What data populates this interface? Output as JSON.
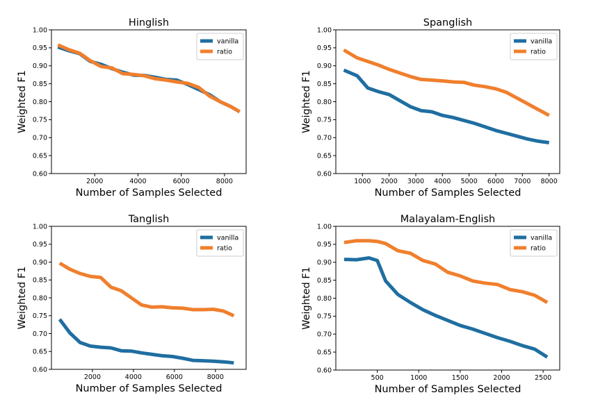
{
  "colors": {
    "vanilla": "#1f6ea1",
    "ratio": "#f07f2d"
  },
  "chart_data": [
    {
      "type": "line",
      "title": "Hinglish",
      "xlabel": "Number of Samples Selected",
      "ylabel": "Weighted F1",
      "xlim": [
        0,
        9000
      ],
      "ylim": [
        0.6,
        1.0
      ],
      "xticks": [
        2000,
        4000,
        6000,
        8000
      ],
      "yticks": [
        0.6,
        0.65,
        0.7,
        0.75,
        0.8,
        0.85,
        0.9,
        0.95,
        1.0
      ],
      "legend": "top-right",
      "series": [
        {
          "name": "vanilla",
          "x": [
            300,
            800,
            1300,
            1800,
            2300,
            2800,
            3300,
            3800,
            4300,
            4800,
            5300,
            5800,
            6300,
            6800,
            7300,
            7800,
            8300,
            8700
          ],
          "y": [
            0.952,
            0.942,
            0.934,
            0.912,
            0.904,
            0.892,
            0.882,
            0.874,
            0.873,
            0.868,
            0.862,
            0.86,
            0.848,
            0.834,
            0.82,
            0.8,
            0.786,
            0.772
          ]
        },
        {
          "name": "ratio",
          "x": [
            300,
            800,
            1300,
            1800,
            2300,
            2800,
            3300,
            3800,
            4300,
            4800,
            5300,
            5800,
            6300,
            6800,
            7300,
            7800,
            8300,
            8700
          ],
          "y": [
            0.958,
            0.945,
            0.935,
            0.914,
            0.898,
            0.894,
            0.878,
            0.876,
            0.872,
            0.864,
            0.86,
            0.855,
            0.851,
            0.84,
            0.816,
            0.8,
            0.786,
            0.772
          ]
        }
      ]
    },
    {
      "type": "line",
      "title": "Spanglish",
      "xlabel": "Number of Samples Selected",
      "ylabel": "Weighted F1",
      "xlim": [
        0,
        8400
      ],
      "ylim": [
        0.6,
        1.0
      ],
      "xticks": [
        1000,
        2000,
        3000,
        4000,
        5000,
        6000,
        7000,
        8000
      ],
      "yticks": [
        0.6,
        0.65,
        0.7,
        0.75,
        0.8,
        0.85,
        0.9,
        0.95,
        1.0
      ],
      "legend": "top-right",
      "series": [
        {
          "name": "vanilla",
          "x": [
            300,
            800,
            1200,
            1600,
            2000,
            2400,
            2800,
            3200,
            3600,
            4000,
            4400,
            4800,
            5200,
            5600,
            6000,
            6400,
            6800,
            7200,
            7600,
            8000
          ],
          "y": [
            0.888,
            0.872,
            0.838,
            0.828,
            0.82,
            0.803,
            0.786,
            0.775,
            0.772,
            0.762,
            0.756,
            0.748,
            0.74,
            0.73,
            0.72,
            0.712,
            0.704,
            0.696,
            0.69,
            0.686
          ]
        },
        {
          "name": "ratio",
          "x": [
            300,
            800,
            1200,
            1600,
            2000,
            2400,
            2800,
            3200,
            3600,
            4000,
            4400,
            4800,
            5200,
            5600,
            6000,
            6400,
            6800,
            7200,
            7600,
            8000
          ],
          "y": [
            0.944,
            0.922,
            0.912,
            0.902,
            0.89,
            0.88,
            0.87,
            0.862,
            0.86,
            0.858,
            0.855,
            0.854,
            0.846,
            0.842,
            0.836,
            0.826,
            0.81,
            0.794,
            0.778,
            0.762
          ]
        }
      ]
    },
    {
      "type": "line",
      "title": "Tanglish",
      "xlabel": "Number of Samples Selected",
      "ylabel": "Weighted F1",
      "xlim": [
        0,
        9500
      ],
      "ylim": [
        0.6,
        1.0
      ],
      "xticks": [
        2000,
        4000,
        6000,
        8000
      ],
      "yticks": [
        0.6,
        0.65,
        0.7,
        0.75,
        0.8,
        0.85,
        0.9,
        0.95,
        1.0
      ],
      "legend": "top-right",
      "series": [
        {
          "name": "vanilla",
          "x": [
            400,
            900,
            1400,
            1900,
            2400,
            2900,
            3400,
            3900,
            4400,
            4900,
            5400,
            5900,
            6400,
            6900,
            7400,
            7900,
            8400,
            8900
          ],
          "y": [
            0.74,
            0.702,
            0.675,
            0.665,
            0.662,
            0.66,
            0.652,
            0.651,
            0.646,
            0.642,
            0.638,
            0.636,
            0.631,
            0.625,
            0.624,
            0.623,
            0.621,
            0.618
          ]
        },
        {
          "name": "ratio",
          "x": [
            400,
            900,
            1400,
            1900,
            2400,
            2900,
            3400,
            3900,
            4400,
            4900,
            5400,
            5900,
            6400,
            6900,
            7400,
            7900,
            8400,
            8900
          ],
          "y": [
            0.897,
            0.88,
            0.868,
            0.86,
            0.857,
            0.83,
            0.82,
            0.8,
            0.78,
            0.774,
            0.775,
            0.772,
            0.771,
            0.767,
            0.767,
            0.768,
            0.763,
            0.75
          ]
        }
      ]
    },
    {
      "type": "line",
      "title": "Malayalam-English",
      "xlabel": "Number of Samples Selected",
      "ylabel": "Weighted F1",
      "xlim": [
        0,
        2700
      ],
      "ylim": [
        0.6,
        1.0
      ],
      "xticks": [
        500,
        1000,
        1500,
        2000,
        2500
      ],
      "yticks": [
        0.6,
        0.65,
        0.7,
        0.75,
        0.8,
        0.85,
        0.9,
        0.95,
        1.0
      ],
      "legend": "top-right",
      "series": [
        {
          "name": "vanilla",
          "x": [
            100,
            250,
            400,
            500,
            600,
            750,
            900,
            1050,
            1200,
            1350,
            1500,
            1650,
            1800,
            1950,
            2100,
            2250,
            2400,
            2550
          ],
          "y": [
            0.908,
            0.907,
            0.912,
            0.905,
            0.848,
            0.81,
            0.788,
            0.768,
            0.752,
            0.738,
            0.724,
            0.714,
            0.702,
            0.69,
            0.68,
            0.668,
            0.658,
            0.636
          ]
        },
        {
          "name": "ratio",
          "x": [
            100,
            250,
            400,
            500,
            600,
            750,
            900,
            1050,
            1200,
            1350,
            1500,
            1650,
            1800,
            1950,
            2100,
            2250,
            2400,
            2550
          ],
          "y": [
            0.955,
            0.96,
            0.96,
            0.958,
            0.952,
            0.932,
            0.925,
            0.905,
            0.895,
            0.872,
            0.862,
            0.848,
            0.842,
            0.838,
            0.824,
            0.818,
            0.808,
            0.788
          ]
        }
      ]
    }
  ]
}
